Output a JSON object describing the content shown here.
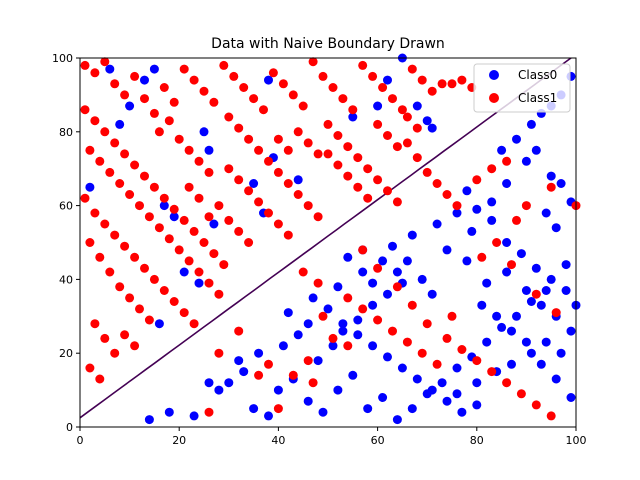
{
  "chart_data": {
    "type": "scatter",
    "title": "Data with Naive Boundary Drawn",
    "xlabel": "",
    "ylabel": "",
    "xlim": [
      0,
      100
    ],
    "ylim": [
      0,
      100
    ],
    "xticks": [
      "0",
      "20",
      "40",
      "60",
      "80",
      "100"
    ],
    "yticks": [
      "0",
      "20",
      "40",
      "60",
      "80",
      "100"
    ],
    "grid": false,
    "legend_position": "top-right",
    "colors": {
      "Class0": "#0000ff",
      "Class1": "#ff0000",
      "boundary": "#440154"
    },
    "boundary": {
      "x": [
        0,
        100
      ],
      "y": [
        2.5,
        101
      ]
    },
    "series": [
      {
        "name": "Class0",
        "points": [
          [
            2,
            65
          ],
          [
            6,
            97
          ],
          [
            8,
            82
          ],
          [
            10,
            87
          ],
          [
            13,
            94
          ],
          [
            15,
            97
          ],
          [
            17,
            60
          ],
          [
            21,
            42
          ],
          [
            25,
            80
          ],
          [
            26,
            75
          ],
          [
            27,
            55
          ],
          [
            19,
            57
          ],
          [
            24,
            39
          ],
          [
            16,
            28
          ],
          [
            35,
            66
          ],
          [
            37,
            58
          ],
          [
            39,
            73
          ],
          [
            38,
            94
          ],
          [
            44,
            67
          ],
          [
            55,
            84
          ],
          [
            60,
            87
          ],
          [
            62,
            94
          ],
          [
            65,
            100
          ],
          [
            68,
            87
          ],
          [
            70,
            83
          ],
          [
            71,
            81
          ],
          [
            85,
            75
          ],
          [
            88,
            78
          ],
          [
            91,
            82
          ],
          [
            93,
            85
          ],
          [
            95,
            87
          ],
          [
            97,
            90
          ],
          [
            99,
            95
          ],
          [
            95,
            68
          ],
          [
            97,
            66
          ],
          [
            99,
            61
          ],
          [
            86,
            66
          ],
          [
            83,
            61
          ],
          [
            80,
            59
          ],
          [
            78,
            64
          ],
          [
            90,
            72
          ],
          [
            92,
            75
          ],
          [
            94,
            58
          ],
          [
            96,
            54
          ],
          [
            98,
            44
          ],
          [
            100,
            33
          ],
          [
            54,
            46
          ],
          [
            57,
            42
          ],
          [
            59,
            39
          ],
          [
            61,
            45
          ],
          [
            64,
            42
          ],
          [
            66,
            45
          ],
          [
            69,
            40
          ],
          [
            71,
            36
          ],
          [
            74,
            48
          ],
          [
            78,
            45
          ],
          [
            82,
            39
          ],
          [
            86,
            42
          ],
          [
            90,
            37
          ],
          [
            93,
            33
          ],
          [
            96,
            30
          ],
          [
            99,
            26
          ],
          [
            50,
            32
          ],
          [
            53,
            28
          ],
          [
            56,
            25
          ],
          [
            59,
            22
          ],
          [
            62,
            19
          ],
          [
            65,
            16
          ],
          [
            68,
            13
          ],
          [
            71,
            10
          ],
          [
            74,
            7
          ],
          [
            77,
            4
          ],
          [
            80,
            12
          ],
          [
            84,
            15
          ],
          [
            87,
            17
          ],
          [
            91,
            20
          ],
          [
            94,
            23
          ],
          [
            97,
            20
          ],
          [
            40,
            10
          ],
          [
            43,
            13
          ],
          [
            46,
            7
          ],
          [
            49,
            4
          ],
          [
            52,
            10
          ],
          [
            55,
            14
          ],
          [
            58,
            5
          ],
          [
            61,
            8
          ],
          [
            64,
            2
          ],
          [
            67,
            5
          ],
          [
            70,
            9
          ],
          [
            73,
            12
          ],
          [
            76,
            16
          ],
          [
            79,
            19
          ],
          [
            82,
            23
          ],
          [
            85,
            27
          ],
          [
            88,
            30
          ],
          [
            91,
            34
          ],
          [
            94,
            37
          ],
          [
            30,
            12
          ],
          [
            33,
            15
          ],
          [
            35,
            5
          ],
          [
            38,
            3
          ],
          [
            36,
            20
          ],
          [
            41,
            22
          ],
          [
            44,
            25
          ],
          [
            46,
            28
          ],
          [
            48,
            18
          ],
          [
            51,
            22
          ],
          [
            53,
            26
          ],
          [
            56,
            29
          ],
          [
            59,
            33
          ],
          [
            62,
            36
          ],
          [
            65,
            39
          ],
          [
            14,
            2
          ],
          [
            18,
            4
          ],
          [
            23,
            3
          ],
          [
            26,
            12
          ],
          [
            28,
            10
          ],
          [
            32,
            18
          ],
          [
            42,
            31
          ],
          [
            47,
            35
          ],
          [
            52,
            38
          ],
          [
            57,
            48
          ],
          [
            63,
            49
          ],
          [
            67,
            52
          ],
          [
            72,
            55
          ],
          [
            76,
            58
          ],
          [
            79,
            53
          ],
          [
            83,
            56
          ],
          [
            86,
            50
          ],
          [
            89,
            47
          ],
          [
            92,
            43
          ],
          [
            95,
            40
          ],
          [
            98,
            37
          ],
          [
            81,
            33
          ],
          [
            84,
            30
          ],
          [
            87,
            26
          ],
          [
            90,
            23
          ],
          [
            93,
            17
          ],
          [
            96,
            13
          ],
          [
            99,
            8
          ],
          [
            80,
            6
          ],
          [
            76,
            9
          ]
        ]
      },
      {
        "name": "Class1",
        "points": [
          [
            1,
            98
          ],
          [
            3,
            96
          ],
          [
            5,
            99
          ],
          [
            7,
            93
          ],
          [
            9,
            90
          ],
          [
            11,
            95
          ],
          [
            13,
            89
          ],
          [
            15,
            85
          ],
          [
            17,
            92
          ],
          [
            19,
            88
          ],
          [
            21,
            97
          ],
          [
            23,
            94
          ],
          [
            25,
            91
          ],
          [
            27,
            88
          ],
          [
            29,
            98
          ],
          [
            31,
            95
          ],
          [
            33,
            92
          ],
          [
            35,
            89
          ],
          [
            37,
            86
          ],
          [
            39,
            96
          ],
          [
            41,
            93
          ],
          [
            43,
            90
          ],
          [
            45,
            87
          ],
          [
            47,
            99
          ],
          [
            49,
            95
          ],
          [
            51,
            92
          ],
          [
            53,
            89
          ],
          [
            55,
            86
          ],
          [
            57,
            98
          ],
          [
            59,
            95
          ],
          [
            61,
            92
          ],
          [
            63,
            89
          ],
          [
            65,
            86
          ],
          [
            67,
            97
          ],
          [
            69,
            94
          ],
          [
            71,
            91
          ],
          [
            73,
            93
          ],
          [
            75,
            93
          ],
          [
            77,
            94
          ],
          [
            79,
            92
          ],
          [
            1,
            86
          ],
          [
            3,
            83
          ],
          [
            5,
            80
          ],
          [
            7,
            77
          ],
          [
            9,
            74
          ],
          [
            11,
            71
          ],
          [
            13,
            68
          ],
          [
            15,
            65
          ],
          [
            17,
            62
          ],
          [
            19,
            59
          ],
          [
            21,
            56
          ],
          [
            23,
            53
          ],
          [
            25,
            50
          ],
          [
            27,
            47
          ],
          [
            29,
            44
          ],
          [
            2,
            75
          ],
          [
            4,
            72
          ],
          [
            6,
            69
          ],
          [
            8,
            66
          ],
          [
            10,
            63
          ],
          [
            12,
            60
          ],
          [
            14,
            57
          ],
          [
            16,
            54
          ],
          [
            18,
            51
          ],
          [
            20,
            48
          ],
          [
            22,
            45
          ],
          [
            24,
            42
          ],
          [
            26,
            39
          ],
          [
            28,
            36
          ],
          [
            1,
            62
          ],
          [
            3,
            58
          ],
          [
            5,
            55
          ],
          [
            7,
            52
          ],
          [
            9,
            49
          ],
          [
            11,
            46
          ],
          [
            13,
            43
          ],
          [
            15,
            40
          ],
          [
            17,
            37
          ],
          [
            19,
            34
          ],
          [
            21,
            31
          ],
          [
            23,
            28
          ],
          [
            2,
            50
          ],
          [
            4,
            46
          ],
          [
            6,
            42
          ],
          [
            8,
            38
          ],
          [
            10,
            35
          ],
          [
            12,
            32
          ],
          [
            14,
            29
          ],
          [
            3,
            28
          ],
          [
            5,
            24
          ],
          [
            7,
            20
          ],
          [
            2,
            16
          ],
          [
            4,
            13
          ],
          [
            9,
            25
          ],
          [
            11,
            22
          ],
          [
            30,
            84
          ],
          [
            32,
            81
          ],
          [
            34,
            78
          ],
          [
            36,
            75
          ],
          [
            38,
            72
          ],
          [
            40,
            69
          ],
          [
            42,
            66
          ],
          [
            44,
            63
          ],
          [
            46,
            60
          ],
          [
            48,
            57
          ],
          [
            30,
            70
          ],
          [
            32,
            67
          ],
          [
            34,
            64
          ],
          [
            36,
            61
          ],
          [
            38,
            58
          ],
          [
            40,
            55
          ],
          [
            42,
            52
          ],
          [
            30,
            56
          ],
          [
            32,
            53
          ],
          [
            34,
            50
          ],
          [
            28,
            60
          ],
          [
            26,
            57
          ],
          [
            24,
            62
          ],
          [
            22,
            65
          ],
          [
            50,
            82
          ],
          [
            52,
            79
          ],
          [
            54,
            76
          ],
          [
            56,
            73
          ],
          [
            58,
            70
          ],
          [
            60,
            67
          ],
          [
            62,
            64
          ],
          [
            64,
            61
          ],
          [
            50,
            74
          ],
          [
            52,
            71
          ],
          [
            54,
            68
          ],
          [
            56,
            65
          ],
          [
            58,
            62
          ],
          [
            66,
            77
          ],
          [
            68,
            73
          ],
          [
            70,
            69
          ],
          [
            72,
            66
          ],
          [
            74,
            63
          ],
          [
            76,
            60
          ],
          [
            60,
            82
          ],
          [
            62,
            79
          ],
          [
            64,
            76
          ],
          [
            66,
            84
          ],
          [
            68,
            81
          ],
          [
            44,
            80
          ],
          [
            46,
            77
          ],
          [
            48,
            74
          ],
          [
            40,
            78
          ],
          [
            42,
            75
          ],
          [
            20,
            78
          ],
          [
            22,
            75
          ],
          [
            24,
            72
          ],
          [
            26,
            69
          ],
          [
            18,
            83
          ],
          [
            16,
            80
          ],
          [
            80,
            67
          ],
          [
            83,
            70
          ],
          [
            86,
            72
          ],
          [
            90,
            60
          ],
          [
            95,
            65
          ],
          [
            100,
            60
          ],
          [
            88,
            56
          ],
          [
            84,
            50
          ],
          [
            81,
            46
          ],
          [
            87,
            44
          ],
          [
            92,
            36
          ],
          [
            96,
            31
          ],
          [
            54,
            35
          ],
          [
            57,
            32
          ],
          [
            60,
            29
          ],
          [
            63,
            26
          ],
          [
            66,
            23
          ],
          [
            69,
            20
          ],
          [
            72,
            17
          ],
          [
            49,
            30
          ],
          [
            51,
            24
          ],
          [
            46,
            18
          ],
          [
            43,
            14
          ],
          [
            40,
            5
          ],
          [
            38,
            17
          ],
          [
            47,
            12
          ],
          [
            45,
            42
          ],
          [
            48,
            39
          ],
          [
            57,
            48
          ],
          [
            60,
            43
          ],
          [
            64,
            38
          ],
          [
            67,
            33
          ],
          [
            70,
            28
          ],
          [
            74,
            24
          ],
          [
            77,
            21
          ],
          [
            80,
            18
          ],
          [
            83,
            15
          ],
          [
            86,
            12
          ],
          [
            89,
            9
          ],
          [
            92,
            6
          ],
          [
            95,
            3
          ],
          [
            26,
            4
          ],
          [
            36,
            14
          ],
          [
            32,
            26
          ],
          [
            28,
            20
          ],
          [
            54,
            22
          ],
          [
            75,
            30
          ]
        ]
      }
    ]
  }
}
